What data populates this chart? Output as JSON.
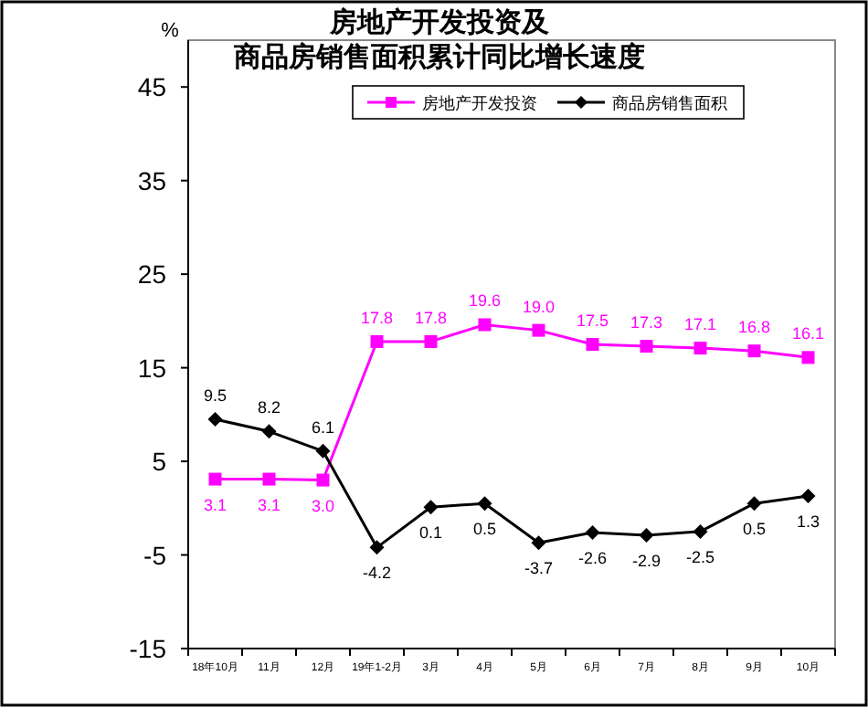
{
  "chart_data": {
    "type": "line",
    "title": "房地产开发投资及",
    "subtitle": "商品房销售面积累计同比增长速度",
    "ylabel": "%",
    "categories": [
      "18年10月",
      "11月",
      "12月",
      "19年1-2月",
      "3月",
      "4月",
      "5月",
      "6月",
      "7月",
      "8月",
      "9月",
      "10月"
    ],
    "series": [
      {
        "name": "房地产开发投资",
        "color": "#ff00ff",
        "marker": "square",
        "values": [
          3.1,
          3.1,
          3.0,
          17.8,
          17.8,
          19.6,
          19.0,
          17.5,
          17.3,
          17.1,
          16.8,
          16.1
        ],
        "value_labels": [
          "3.1",
          "3.1",
          "3.0",
          "17.8",
          "17.8",
          "19.6",
          "19.0",
          "17.5",
          "17.3",
          "17.1",
          "16.8",
          "16.1"
        ]
      },
      {
        "name": "商品房销售面积",
        "color": "#000000",
        "marker": "diamond",
        "values": [
          9.5,
          8.2,
          6.1,
          -4.2,
          0.1,
          0.5,
          -3.7,
          -2.6,
          -2.9,
          -2.5,
          0.5,
          1.3
        ]
      }
    ],
    "ylim": [
      -15,
      50
    ],
    "yticks": [
      -15,
      -5,
      5,
      15,
      25,
      35,
      45
    ],
    "grid": false,
    "legend": "top",
    "data_labels": true,
    "line_style": "solid"
  }
}
